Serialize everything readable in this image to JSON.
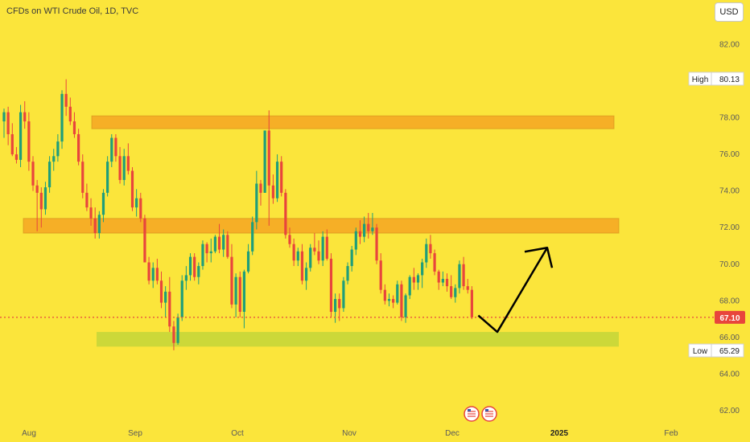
{
  "header": {
    "title": "CFDs on WTI Crude Oil, 1D, TVC",
    "currency": "USD"
  },
  "colors": {
    "background": "#fbe53b",
    "up": "#1f9e7a",
    "down": "#e8453c",
    "resistance_zone": "#f5a623",
    "support_zone": "#c3d63a",
    "last_price": "#e8453c",
    "arrow": "#000000"
  },
  "chart_data": {
    "type": "candlestick",
    "title": "CFDs on WTI Crude Oil, 1D, TVC",
    "x_ticks": [
      "Aug",
      "Sep",
      "Oct",
      "Nov",
      "Dec",
      "2025",
      "Feb"
    ],
    "y_ticks": [
      "82.00",
      "80.00",
      "78.00",
      "76.00",
      "74.00",
      "72.00",
      "70.00",
      "68.00",
      "66.00",
      "64.00",
      "62.00"
    ],
    "ylim": [
      61.3,
      83.2
    ],
    "high": {
      "label": "High",
      "value": "80.13"
    },
    "low": {
      "label": "Low",
      "value": "65.29"
    },
    "last_price": "67.10",
    "zones": [
      {
        "name": "resistance-zone-upper",
        "from": 77.4,
        "to": 78.1
      },
      {
        "name": "resistance-zone-lower",
        "from": 71.7,
        "to": 72.5
      },
      {
        "name": "support-zone",
        "from": 65.5,
        "to": 66.3
      }
    ],
    "projection": [
      [
        67.2
      ],
      [
        66.3
      ],
      [
        70.9
      ]
    ],
    "candles": [
      [
        77.8,
        78.5,
        76.9,
        78.3
      ],
      [
        78.3,
        78.6,
        76.5,
        77.1
      ],
      [
        77.1,
        77.7,
        75.9,
        76.0
      ],
      [
        76.0,
        76.4,
        75.5,
        75.7
      ],
      [
        75.7,
        78.7,
        75.3,
        78.3
      ],
      [
        78.3,
        78.9,
        77.4,
        77.8
      ],
      [
        77.8,
        78.3,
        75.1,
        75.6
      ],
      [
        75.6,
        75.9,
        74.0,
        74.3
      ],
      [
        74.3,
        74.6,
        71.8,
        73.9
      ],
      [
        73.9,
        74.2,
        72.0,
        73.0
      ],
      [
        73.0,
        74.5,
        72.7,
        74.2
      ],
      [
        74.2,
        75.9,
        73.9,
        75.6
      ],
      [
        75.6,
        76.3,
        75.1,
        75.9
      ],
      [
        75.9,
        77.1,
        75.6,
        76.7
      ],
      [
        76.7,
        79.5,
        76.3,
        79.3
      ],
      [
        79.3,
        80.1,
        78.1,
        78.6
      ],
      [
        78.6,
        79.1,
        77.6,
        77.8
      ],
      [
        77.8,
        78.3,
        76.9,
        77.1
      ],
      [
        77.1,
        77.4,
        75.4,
        75.6
      ],
      [
        75.6,
        76.0,
        73.6,
        73.9
      ],
      [
        73.9,
        74.4,
        72.9,
        73.1
      ],
      [
        73.1,
        73.6,
        72.1,
        72.5
      ],
      [
        72.5,
        73.1,
        71.4,
        71.7
      ],
      [
        71.7,
        72.9,
        71.4,
        72.7
      ],
      [
        72.7,
        74.1,
        72.3,
        73.9
      ],
      [
        73.9,
        75.9,
        73.7,
        75.6
      ],
      [
        75.6,
        77.1,
        75.3,
        76.9
      ],
      [
        76.9,
        77.1,
        75.6,
        75.9
      ],
      [
        75.9,
        76.4,
        74.4,
        74.6
      ],
      [
        74.6,
        76.3,
        74.3,
        75.9
      ],
      [
        75.9,
        76.6,
        74.9,
        75.1
      ],
      [
        75.1,
        75.3,
        72.9,
        73.1
      ],
      [
        73.1,
        74.1,
        72.6,
        73.6
      ],
      [
        73.6,
        73.9,
        72.3,
        72.5
      ],
      [
        72.5,
        72.7,
        70.1,
        70.1
      ],
      [
        70.1,
        70.4,
        68.9,
        69.1
      ],
      [
        69.1,
        70.1,
        68.7,
        69.8
      ],
      [
        69.8,
        70.3,
        68.9,
        69.1
      ],
      [
        69.1,
        69.6,
        67.6,
        67.9
      ],
      [
        67.9,
        68.8,
        67.1,
        68.5
      ],
      [
        68.5,
        69.3,
        66.3,
        66.6
      ],
      [
        66.6,
        66.9,
        65.3,
        65.7
      ],
      [
        65.7,
        67.3,
        65.6,
        67.1
      ],
      [
        67.1,
        69.4,
        66.9,
        69.1
      ],
      [
        69.1,
        69.9,
        68.6,
        69.4
      ],
      [
        69.4,
        70.6,
        69.1,
        70.4
      ],
      [
        70.4,
        70.6,
        69.1,
        69.3
      ],
      [
        69.3,
        70.1,
        68.9,
        69.9
      ],
      [
        69.9,
        71.3,
        69.7,
        71.1
      ],
      [
        71.1,
        71.2,
        70.1,
        70.6
      ],
      [
        70.6,
        71.4,
        70.1,
        70.7
      ],
      [
        70.7,
        71.6,
        70.6,
        71.5
      ],
      [
        71.5,
        72.2,
        70.6,
        70.8
      ],
      [
        70.8,
        71.9,
        70.4,
        71.6
      ],
      [
        71.6,
        71.8,
        70.3,
        70.4
      ],
      [
        70.4,
        71.1,
        67.6,
        67.8
      ],
      [
        67.8,
        69.5,
        67.1,
        69.3
      ],
      [
        69.3,
        69.6,
        67.1,
        67.4
      ],
      [
        67.4,
        69.7,
        66.5,
        69.6
      ],
      [
        69.6,
        71.1,
        69.5,
        70.7
      ],
      [
        70.7,
        72.6,
        70.5,
        72.3
      ],
      [
        72.3,
        75.1,
        71.9,
        74.4
      ],
      [
        74.4,
        74.6,
        73.2,
        73.9
      ],
      [
        73.9,
        77.3,
        73.9,
        77.3
      ],
      [
        77.3,
        78.4,
        72.1,
        74.3
      ],
      [
        74.3,
        74.9,
        73.3,
        73.6
      ],
      [
        73.6,
        76.0,
        73.4,
        75.6
      ],
      [
        75.6,
        75.9,
        73.7,
        73.9
      ],
      [
        73.9,
        74.1,
        71.4,
        71.6
      ],
      [
        71.6,
        72.0,
        70.9,
        71.1
      ],
      [
        71.1,
        71.4,
        69.9,
        70.2
      ],
      [
        70.2,
        70.9,
        69.9,
        70.7
      ],
      [
        70.7,
        71.1,
        68.9,
        69.1
      ],
      [
        69.1,
        70.1,
        68.6,
        69.8
      ],
      [
        69.8,
        71.1,
        69.6,
        70.9
      ],
      [
        70.9,
        71.7,
        70.5,
        70.7
      ],
      [
        70.7,
        71.3,
        70.0,
        70.2
      ],
      [
        70.2,
        71.8,
        69.9,
        71.5
      ],
      [
        71.5,
        71.9,
        70.2,
        70.3
      ],
      [
        70.3,
        70.6,
        67.1,
        67.4
      ],
      [
        67.4,
        68.4,
        66.8,
        68.1
      ],
      [
        68.1,
        68.4,
        66.9,
        67.6
      ],
      [
        67.6,
        69.3,
        67.4,
        69.1
      ],
      [
        69.1,
        70.1,
        68.9,
        69.9
      ],
      [
        69.9,
        71.0,
        69.6,
        70.8
      ],
      [
        70.8,
        72.0,
        70.5,
        71.8
      ],
      [
        71.8,
        72.4,
        71.1,
        71.5
      ],
      [
        71.5,
        72.6,
        71.2,
        72.2
      ],
      [
        72.2,
        72.8,
        71.4,
        71.8
      ],
      [
        71.8,
        72.8,
        71.6,
        72.0
      ],
      [
        72.0,
        72.2,
        70.0,
        70.2
      ],
      [
        70.2,
        70.6,
        68.4,
        68.6
      ],
      [
        68.6,
        68.9,
        67.8,
        68.0
      ],
      [
        68.0,
        68.4,
        67.7,
        68.1
      ],
      [
        68.1,
        68.3,
        67.6,
        67.9
      ],
      [
        67.9,
        69.1,
        67.8,
        68.9
      ],
      [
        68.9,
        69.1,
        66.9,
        67.1
      ],
      [
        67.1,
        68.4,
        66.8,
        68.3
      ],
      [
        68.3,
        69.4,
        68.1,
        69.3
      ],
      [
        69.3,
        69.8,
        68.6,
        69.0
      ],
      [
        69.0,
        69.5,
        68.6,
        69.4
      ],
      [
        69.4,
        70.3,
        68.7,
        70.1
      ],
      [
        70.1,
        71.4,
        69.8,
        71.1
      ],
      [
        71.1,
        71.6,
        70.3,
        70.6
      ],
      [
        70.6,
        70.8,
        69.4,
        69.6
      ],
      [
        69.6,
        69.7,
        68.6,
        69.0
      ],
      [
        69.0,
        69.6,
        68.8,
        69.2
      ],
      [
        69.2,
        69.5,
        68.5,
        68.8
      ],
      [
        68.8,
        69.4,
        68.1,
        68.2
      ],
      [
        68.2,
        68.9,
        67.9,
        68.7
      ],
      [
        68.7,
        70.2,
        68.4,
        70.0
      ],
      [
        70.0,
        70.4,
        68.6,
        68.8
      ],
      [
        68.8,
        69.2,
        68.4,
        68.6
      ],
      [
        68.6,
        68.8,
        67.0,
        67.1
      ]
    ]
  }
}
